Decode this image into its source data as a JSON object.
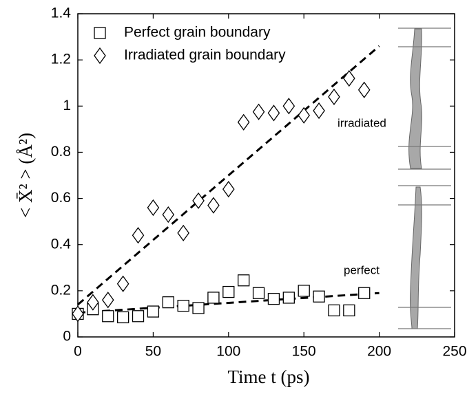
{
  "chart_data": {
    "type": "scatter",
    "x_label": "Time t (ps)",
    "y_label": "< X̄² > (Å²)",
    "xlim": [
      0,
      250
    ],
    "xticks": [
      0,
      50,
      100,
      150,
      200,
      250
    ],
    "ylim": [
      0,
      1.4
    ],
    "yticks": [
      0,
      0.2,
      0.4,
      0.6,
      0.8,
      1,
      1.2,
      1.4
    ],
    "legend": "upper left",
    "annotations": [
      "irradiated",
      "perfect"
    ],
    "series": [
      {
        "name": "Perfect grain boundary",
        "marker": "square",
        "color": "#000000",
        "x": [
          0,
          10,
          20,
          30,
          40,
          50,
          60,
          70,
          80,
          90,
          100,
          110,
          120,
          130,
          140,
          150,
          160,
          170,
          180,
          190
        ],
        "values": [
          0.1,
          0.12,
          0.09,
          0.085,
          0.09,
          0.11,
          0.15,
          0.135,
          0.125,
          0.17,
          0.195,
          0.245,
          0.19,
          0.165,
          0.17,
          0.2,
          0.175,
          0.115,
          0.115,
          0.19
        ]
      },
      {
        "name": "Irradiated grain boundary",
        "marker": "diamond",
        "color": "#000000",
        "x": [
          0,
          10,
          20,
          30,
          40,
          50,
          60,
          70,
          80,
          90,
          100,
          110,
          120,
          130,
          140,
          150,
          160,
          170,
          180,
          190
        ],
        "values": [
          0.1,
          0.15,
          0.16,
          0.23,
          0.44,
          0.56,
          0.53,
          0.45,
          0.59,
          0.57,
          0.64,
          0.93,
          0.975,
          0.97,
          1.0,
          0.96,
          0.98,
          1.04,
          1.12,
          1.07
        ]
      }
    ],
    "fit_lines": [
      {
        "x": [
          0,
          200
        ],
        "values": [
          0.105,
          0.19
        ]
      },
      {
        "x": [
          0,
          200
        ],
        "values": [
          0.14,
          1.26
        ]
      }
    ]
  }
}
